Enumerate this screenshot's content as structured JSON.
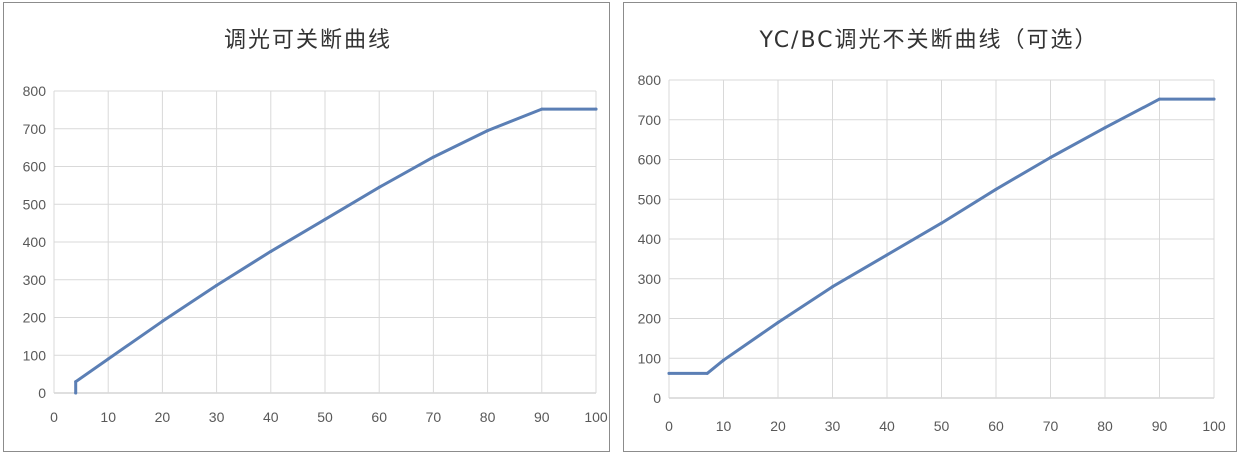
{
  "colors": {
    "series": "#5b7fb5",
    "grid": "#d9d9d9",
    "text": "#595959"
  },
  "chart_data": [
    {
      "type": "line",
      "title": "调光可关断曲线",
      "xlabel": "",
      "ylabel": "",
      "xlim": [
        0,
        100
      ],
      "ylim": [
        0,
        800
      ],
      "x_ticks": [
        "0",
        "10",
        "20",
        "30",
        "40",
        "50",
        "60",
        "70",
        "80",
        "90",
        "100"
      ],
      "y_ticks": [
        "0",
        "100",
        "200",
        "300",
        "400",
        "500",
        "600",
        "700",
        "800"
      ],
      "grid": true,
      "legend": "none",
      "series": [
        {
          "x": [
            4,
            4,
            10,
            20,
            30,
            40,
            50,
            60,
            70,
            80,
            90,
            100
          ],
          "y": [
            0,
            30,
            90,
            190,
            285,
            375,
            460,
            545,
            625,
            695,
            752,
            752
          ]
        }
      ]
    },
    {
      "type": "line",
      "title": "YC/BC调光不关断曲线（可选）",
      "xlabel": "",
      "ylabel": "",
      "xlim": [
        0,
        100
      ],
      "ylim": [
        0,
        800
      ],
      "x_ticks": [
        "0",
        "10",
        "20",
        "30",
        "40",
        "50",
        "60",
        "70",
        "80",
        "90",
        "100"
      ],
      "y_ticks": [
        "0",
        "100",
        "200",
        "300",
        "400",
        "500",
        "600",
        "700",
        "800"
      ],
      "grid": true,
      "legend": "none",
      "series": [
        {
          "x": [
            0,
            7,
            10,
            20,
            30,
            40,
            50,
            60,
            70,
            80,
            90,
            100
          ],
          "y": [
            62,
            62,
            95,
            190,
            280,
            360,
            440,
            525,
            605,
            680,
            752,
            752
          ]
        }
      ]
    }
  ]
}
